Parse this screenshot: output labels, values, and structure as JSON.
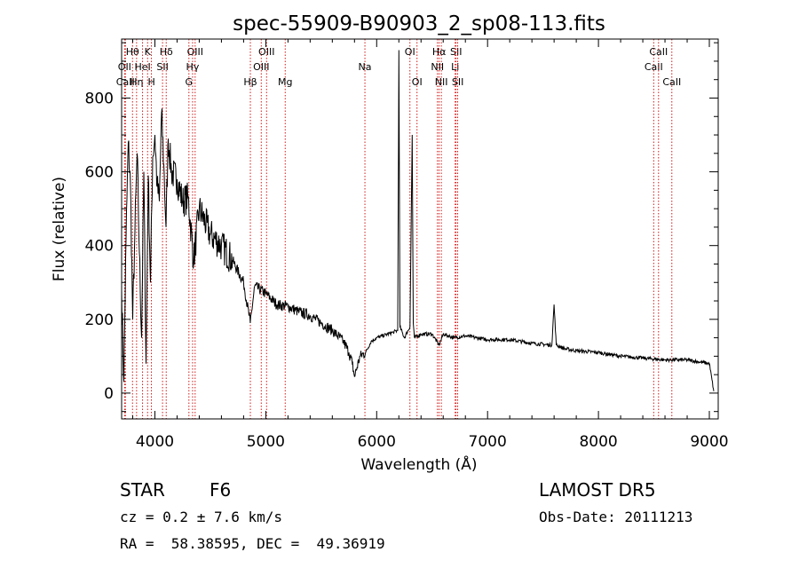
{
  "chart_data": {
    "type": "line",
    "title": "spec-55909-B90903_2_sp08-113.fits",
    "xlabel": "Wavelength (Å)",
    "ylabel": "Flux (relative)",
    "xlim": [
      3700,
      9080
    ],
    "ylim": [
      -70,
      960
    ],
    "x_ticks": [
      4000,
      5000,
      6000,
      7000,
      8000,
      9000
    ],
    "y_ticks": [
      0,
      200,
      400,
      600,
      800
    ],
    "line_color": "#000000",
    "marker_color": "#cc0000",
    "series": [
      {
        "x": [
          3700,
          3720,
          3740,
          3760,
          3780,
          3800,
          3820,
          3840,
          3860,
          3880,
          3900,
          3920,
          3940,
          3960,
          3980,
          4000,
          4020,
          4040,
          4060,
          4080,
          4100,
          4120,
          4150,
          4200,
          4250,
          4300,
          4350,
          4400,
          4500,
          4600,
          4700,
          4800,
          4860,
          4900,
          5000,
          5100,
          5200,
          5300,
          5400,
          5500,
          5600,
          5700,
          5750,
          5780,
          5800,
          5850,
          5900,
          5950,
          6000,
          6100,
          6150,
          6190,
          6200,
          6210,
          6250,
          6300,
          6320,
          6330,
          6340,
          6400,
          6500,
          6563,
          6600,
          6700,
          6800,
          6900,
          7000,
          7200,
          7400,
          7580,
          7600,
          7620,
          7700,
          7800,
          8000,
          8200,
          8400,
          8600,
          8800,
          8900,
          9000,
          9040
        ],
        "y": [
          280,
          30,
          420,
          680,
          560,
          200,
          440,
          650,
          380,
          150,
          600,
          80,
          590,
          300,
          640,
          700,
          560,
          520,
          760,
          620,
          450,
          690,
          600,
          580,
          520,
          530,
          360,
          500,
          430,
          400,
          360,
          300,
          190,
          290,
          270,
          240,
          235,
          220,
          210,
          190,
          170,
          140,
          110,
          80,
          45,
          100,
          110,
          140,
          150,
          160,
          165,
          170,
          930,
          180,
          150,
          180,
          700,
          190,
          150,
          160,
          160,
          130,
          160,
          150,
          155,
          150,
          145,
          145,
          135,
          130,
          240,
          130,
          120,
          115,
          110,
          100,
          95,
          90,
          90,
          85,
          80,
          5
        ]
      }
    ],
    "lines": [
      {
        "name": "Hθ",
        "x": 3798,
        "row": 1
      },
      {
        "name": "OII",
        "x": 3727,
        "row": 2
      },
      {
        "name": "CaII",
        "x": 3734,
        "row": 3
      },
      {
        "name": "Hη",
        "x": 3835,
        "row": 3
      },
      {
        "name": "K",
        "x": 3934,
        "row": 1
      },
      {
        "name": "HeI",
        "x": 3889,
        "row": 2
      },
      {
        "name": "H",
        "x": 3969,
        "row": 3
      },
      {
        "name": "Hδ",
        "x": 4102,
        "row": 1
      },
      {
        "name": "SII",
        "x": 4069,
        "row": 2
      },
      {
        "name": "OIII",
        "x": 4363,
        "row": 1
      },
      {
        "name": "Hγ",
        "x": 4340,
        "row": 2
      },
      {
        "name": "G",
        "x": 4307,
        "row": 3
      },
      {
        "name": "Hβ",
        "x": 4861,
        "row": 3
      },
      {
        "name": "OIII",
        "x": 4959,
        "row": 2
      },
      {
        "name": "OIII",
        "x": 5007,
        "row": 1
      },
      {
        "name": "Mg",
        "x": 5175,
        "row": 3
      },
      {
        "name": "Na",
        "x": 5894,
        "row": 2
      },
      {
        "name": "OI",
        "x": 6300,
        "row": 1
      },
      {
        "name": "OI",
        "x": 6364,
        "row": 3
      },
      {
        "name": "Hα",
        "x": 6563,
        "row": 1
      },
      {
        "name": "NII",
        "x": 6548,
        "row": 2
      },
      {
        "name": "NII",
        "x": 6583,
        "row": 3
      },
      {
        "name": "SII",
        "x": 6716,
        "row": 1
      },
      {
        "name": "Li",
        "x": 6708,
        "row": 2
      },
      {
        "name": "SII",
        "x": 6731,
        "row": 3
      },
      {
        "name": "CaII",
        "x": 8498,
        "row": 2
      },
      {
        "name": "CaII",
        "x": 8542,
        "row": 1
      },
      {
        "name": "CaII",
        "x": 8662,
        "row": 3
      }
    ]
  },
  "info": {
    "object_class": "STAR",
    "subclass": "F6",
    "survey": "LAMOST DR5",
    "redshift": "cz = 0.2 ± 7.6 km/s",
    "obs_date": "Obs-Date: 20111213",
    "coords": "RA =  58.38595, DEC =  49.36919"
  }
}
